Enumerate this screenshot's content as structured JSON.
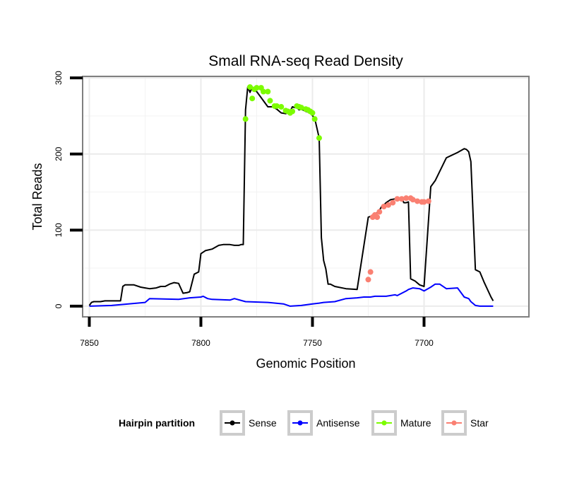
{
  "chart_data": {
    "type": "line",
    "title": "Small RNA-seq Read Density",
    "xlabel": "Genomic Position",
    "ylabel": "Total Reads",
    "xlim": [
      7853,
      7653
    ],
    "ylim": [
      -14,
      302
    ],
    "x_ticks": [
      7850,
      7800,
      7750,
      7700
    ],
    "y_ticks": [
      0,
      100,
      200,
      300
    ],
    "grid": true,
    "legend": {
      "title": "Hairpin partition",
      "position": "bottom",
      "entries": [
        {
          "name": "Sense",
          "color": "#000000"
        },
        {
          "name": "Antisense",
          "color": "#0000ff"
        },
        {
          "name": "Mature",
          "color": "#7cfc00"
        },
        {
          "name": "Star",
          "color": "#fa8072"
        }
      ]
    },
    "series": [
      {
        "name": "Sense",
        "color": "#000000",
        "style": "line",
        "x": [
          7850,
          7849,
          7848,
          7845,
          7843,
          7836,
          7835,
          7834,
          7830,
          7827,
          7825,
          7823,
          7820,
          7818,
          7816,
          7814,
          7812,
          7810,
          7808,
          7806,
          7805,
          7803,
          7801,
          7800,
          7798,
          7795,
          7792,
          7790,
          7787,
          7785,
          7784,
          7783,
          7782,
          7781,
          7780,
          7779,
          7778,
          7777,
          7776,
          7775,
          7770,
          7768,
          7766,
          7764,
          7762,
          7760,
          7759,
          7758,
          7757,
          7756,
          7755,
          7753,
          7751,
          7749,
          7747,
          7746,
          7745,
          7744,
          7743,
          7742,
          7740,
          7735,
          7730,
          7725,
          7722,
          7720,
          7719,
          7718,
          7717,
          7715,
          7713,
          7711,
          7710,
          7709,
          7708,
          7707,
          7706,
          7704,
          7702,
          7700,
          7697,
          7695,
          7690,
          7685,
          7682,
          7681,
          7680,
          7679,
          7677,
          7675,
          7673,
          7670,
          7669
        ],
        "values": [
          1,
          5,
          6,
          6,
          7,
          7,
          26,
          28,
          28,
          25,
          24,
          23,
          24,
          26,
          26,
          29,
          31,
          30,
          17,
          18,
          19,
          42,
          45,
          69,
          73,
          75,
          80,
          81,
          81,
          80,
          80,
          80,
          81,
          81,
          258,
          288,
          281,
          288,
          283,
          282,
          262,
          262,
          259,
          254,
          253,
          256,
          262,
          261,
          261,
          258,
          259,
          256,
          254,
          247,
          221,
          90,
          60,
          49,
          29,
          29,
          26,
          23,
          22,
          117,
          120,
          126,
          131,
          133,
          136,
          140,
          141,
          141,
          141,
          136,
          136,
          137,
          36,
          33,
          28,
          26,
          157,
          165,
          195,
          202,
          207,
          206,
          203,
          190,
          48,
          45,
          31,
          12,
          7
        ]
      },
      {
        "name": "Antisense",
        "color": "#0000ff",
        "style": "line",
        "x": [
          7850,
          7840,
          7825,
          7823,
          7810,
          7805,
          7800,
          7799,
          7797,
          7795,
          7787,
          7785,
          7780,
          7770,
          7763,
          7760,
          7755,
          7750,
          7747,
          7745,
          7740,
          7735,
          7730,
          7727,
          7725,
          7724,
          7722,
          7720,
          7717,
          7715,
          7713,
          7712,
          7710,
          7708,
          7707,
          7705,
          7702,
          7700,
          7697,
          7695,
          7693,
          7690,
          7685,
          7682,
          7680,
          7679,
          7677,
          7675,
          7673,
          7670,
          7669
        ],
        "values": [
          0,
          1,
          5,
          10,
          9,
          11,
          12,
          13,
          10,
          9,
          8,
          10,
          6,
          5,
          3,
          0,
          1,
          3,
          4,
          5,
          6,
          10,
          11,
          12,
          12,
          12,
          13,
          13,
          13,
          14,
          15,
          14,
          17,
          20,
          22,
          24,
          23,
          20,
          25,
          29,
          29,
          23,
          24,
          12,
          10,
          6,
          1,
          0,
          0,
          0,
          0
        ]
      },
      {
        "name": "Mature",
        "color": "#7cfc00",
        "style": "points",
        "x": [
          7780,
          7778,
          7777,
          7776,
          7775,
          7773,
          7772,
          7770,
          7769,
          7767,
          7766,
          7764,
          7762,
          7761,
          7760,
          7759,
          7757,
          7756,
          7755,
          7753,
          7752,
          7751,
          7750,
          7749,
          7747
        ],
        "values": [
          246,
          288,
          273,
          285,
          287,
          287,
          282,
          282,
          270,
          263,
          263,
          262,
          257,
          256,
          254,
          256,
          263,
          262,
          261,
          259,
          258,
          256,
          254,
          246,
          221
        ]
      },
      {
        "name": "Star",
        "color": "#fa8072",
        "style": "points",
        "x": [
          7725,
          7724,
          7723,
          7722,
          7721,
          7720,
          7718,
          7716,
          7714,
          7712,
          7710,
          7708,
          7706,
          7705,
          7703,
          7701,
          7700,
          7698
        ],
        "values": [
          35,
          45,
          117,
          120,
          117,
          124,
          131,
          133,
          136,
          141,
          141,
          142,
          142,
          140,
          138,
          137,
          137,
          138
        ]
      }
    ]
  }
}
